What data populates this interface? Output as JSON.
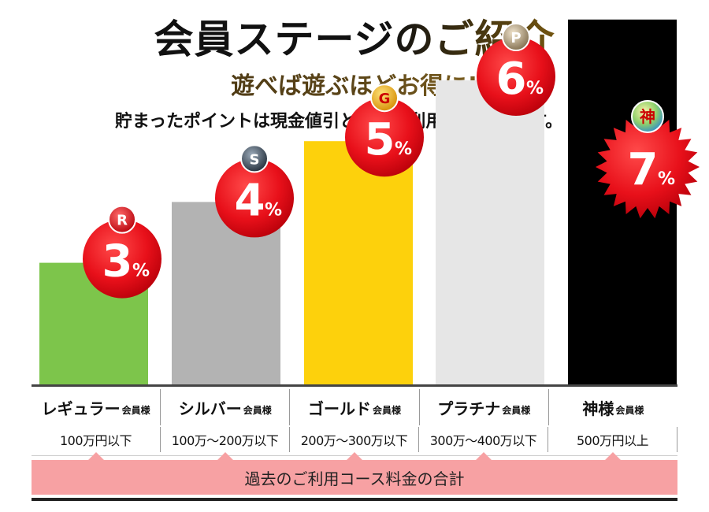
{
  "header": {
    "title": "会員ステージのご紹介",
    "subtitle": "遊べば遊ぶほどお得に!",
    "tagline": "貯まったポイントは現金値引としてご利用いただけます。"
  },
  "chart_data": {
    "type": "bar",
    "categories": [
      "レギュラー",
      "シルバー",
      "ゴールド",
      "プラチナ",
      "神様"
    ],
    "values": [
      3,
      4,
      5,
      6,
      7
    ],
    "unit": "%",
    "badges": [
      "R",
      "S",
      "G",
      "P",
      "神"
    ],
    "colors": [
      "#7dc54b",
      "#b3b3b3",
      "#fdd10c",
      "#e6e6e6",
      "#000000"
    ],
    "ylim": [
      0,
      8
    ],
    "grid": false,
    "legend": "none"
  },
  "tiers": [
    {
      "name": "レギュラー",
      "suffix": "会員様",
      "range": "100万円以下"
    },
    {
      "name": "シルバー",
      "suffix": "会員様",
      "range": "100万〜200万以下"
    },
    {
      "name": "ゴールド",
      "suffix": "会員様",
      "range": "200万〜300万以下"
    },
    {
      "name": "プラチナ",
      "suffix": "会員様",
      "range": "300万〜400万以下"
    },
    {
      "name": "神様",
      "suffix": "会員様",
      "range": "500万円以上"
    }
  ],
  "summary": "過去のご利用コース料金の合計",
  "colors": {
    "accent_red": "#e8101a",
    "summary_bg": "#f7a1a3"
  }
}
